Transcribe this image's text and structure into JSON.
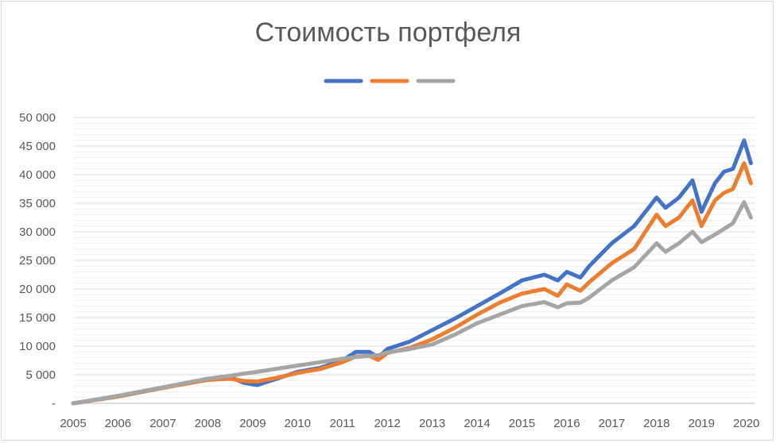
{
  "chart_data": {
    "type": "line",
    "title": "Стоимость портфеля",
    "xlabel": "",
    "ylabel": "",
    "xlim": [
      2005,
      2020.2
    ],
    "ylim": [
      0,
      50000
    ],
    "grid": true,
    "legend": "top-center",
    "x_ticks": [
      "2005",
      "2006",
      "2007",
      "2008",
      "2009",
      "2010",
      "2011",
      "2012",
      "2013",
      "2014",
      "2015",
      "2016",
      "2017",
      "2018",
      "2019",
      "2020"
    ],
    "y_ticks": [
      "-",
      "5 000",
      "10 000",
      "15 000",
      "20 000",
      "25 000",
      "30 000",
      "35 000",
      "40 000",
      "45 000",
      "50 000"
    ],
    "series": [
      {
        "color": "#4472c4",
        "points": [
          [
            2005,
            0
          ],
          [
            2006,
            1200
          ],
          [
            2007,
            2700
          ],
          [
            2008,
            4200
          ],
          [
            2008.5,
            4600
          ],
          [
            2008.8,
            3600
          ],
          [
            2009.1,
            3200
          ],
          [
            2009.5,
            4200
          ],
          [
            2010,
            5500
          ],
          [
            2010.5,
            6200
          ],
          [
            2011,
            7500
          ],
          [
            2011.3,
            9000
          ],
          [
            2011.6,
            9000
          ],
          [
            2011.8,
            8000
          ],
          [
            2012,
            9500
          ],
          [
            2012.5,
            10800
          ],
          [
            2013,
            12800
          ],
          [
            2013.5,
            14800
          ],
          [
            2014,
            17000
          ],
          [
            2014.5,
            19200
          ],
          [
            2015,
            21500
          ],
          [
            2015.5,
            22500
          ],
          [
            2015.8,
            21500
          ],
          [
            2016,
            23000
          ],
          [
            2016.3,
            22000
          ],
          [
            2016.5,
            24000
          ],
          [
            2017,
            28000
          ],
          [
            2017.5,
            31000
          ],
          [
            2018,
            36000
          ],
          [
            2018.2,
            34200
          ],
          [
            2018.5,
            36000
          ],
          [
            2018.8,
            39000
          ],
          [
            2019,
            33500
          ],
          [
            2019.3,
            38500
          ],
          [
            2019.5,
            40500
          ],
          [
            2019.7,
            41000
          ],
          [
            2019.95,
            46000
          ],
          [
            2020.1,
            42000
          ]
        ]
      },
      {
        "color": "#ed7d31",
        "points": [
          [
            2005,
            0
          ],
          [
            2006,
            1200
          ],
          [
            2007,
            2700
          ],
          [
            2008,
            4100
          ],
          [
            2008.5,
            4300
          ],
          [
            2008.8,
            3900
          ],
          [
            2009.1,
            3800
          ],
          [
            2009.5,
            4400
          ],
          [
            2010,
            5300
          ],
          [
            2010.5,
            6000
          ],
          [
            2011,
            7200
          ],
          [
            2011.3,
            8200
          ],
          [
            2011.6,
            8300
          ],
          [
            2011.8,
            7600
          ],
          [
            2012,
            8800
          ],
          [
            2012.5,
            9700
          ],
          [
            2013,
            11200
          ],
          [
            2013.5,
            13200
          ],
          [
            2014,
            15500
          ],
          [
            2014.5,
            17600
          ],
          [
            2015,
            19200
          ],
          [
            2015.5,
            20000
          ],
          [
            2015.8,
            18800
          ],
          [
            2016,
            20800
          ],
          [
            2016.3,
            19700
          ],
          [
            2016.5,
            21200
          ],
          [
            2017,
            24500
          ],
          [
            2017.5,
            27000
          ],
          [
            2018,
            33000
          ],
          [
            2018.2,
            31000
          ],
          [
            2018.5,
            32500
          ],
          [
            2018.8,
            35500
          ],
          [
            2019,
            31000
          ],
          [
            2019.3,
            35500
          ],
          [
            2019.5,
            36800
          ],
          [
            2019.7,
            37500
          ],
          [
            2019.95,
            42000
          ],
          [
            2020.1,
            38500
          ]
        ]
      },
      {
        "color": "#a5a5a5",
        "points": [
          [
            2005,
            0
          ],
          [
            2006,
            1300
          ],
          [
            2007,
            2800
          ],
          [
            2008,
            4300
          ],
          [
            2008.5,
            4800
          ],
          [
            2008.8,
            5200
          ],
          [
            2009.1,
            5500
          ],
          [
            2009.5,
            6000
          ],
          [
            2010,
            6600
          ],
          [
            2010.5,
            7200
          ],
          [
            2011,
            7800
          ],
          [
            2011.3,
            8100
          ],
          [
            2011.6,
            8300
          ],
          [
            2011.8,
            8400
          ],
          [
            2012,
            8900
          ],
          [
            2012.5,
            9500
          ],
          [
            2013,
            10300
          ],
          [
            2013.5,
            12000
          ],
          [
            2014,
            14000
          ],
          [
            2014.5,
            15500
          ],
          [
            2015,
            17000
          ],
          [
            2015.5,
            17700
          ],
          [
            2015.8,
            16800
          ],
          [
            2016,
            17500
          ],
          [
            2016.3,
            17600
          ],
          [
            2016.5,
            18500
          ],
          [
            2017,
            21500
          ],
          [
            2017.5,
            23800
          ],
          [
            2018,
            28000
          ],
          [
            2018.2,
            26500
          ],
          [
            2018.5,
            28000
          ],
          [
            2018.8,
            30000
          ],
          [
            2019,
            28200
          ],
          [
            2019.3,
            29500
          ],
          [
            2019.5,
            30500
          ],
          [
            2019.7,
            31500
          ],
          [
            2019.95,
            35200
          ],
          [
            2020.1,
            32500
          ]
        ]
      }
    ]
  }
}
